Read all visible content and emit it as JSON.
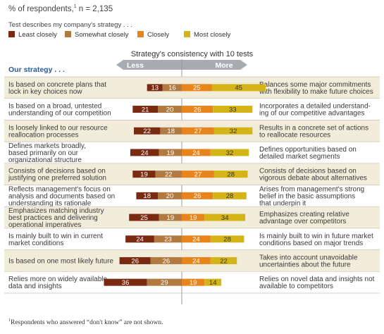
{
  "respondents_main": "% of respondents,",
  "respondents_sup": "1",
  "respondents_n": " n = 2,135",
  "subtitle": "Test describes my company's strategy . . .",
  "chart_data": {
    "type": "bar",
    "title": "Strategy's consistency with 10 tests",
    "left_heading": "Our strategy . . .",
    "axis_left": "Less",
    "axis_right": "More",
    "colors": [
      "#7b2a12",
      "#b07a40",
      "#e8841c",
      "#d5b418"
    ],
    "label_colors": [
      "#ffffff",
      "#ffffff",
      "#ffffff",
      "#333333"
    ],
    "series": [
      {
        "name": "Least closely",
        "values": [
          13,
          21,
          22,
          24,
          19,
          18,
          25,
          24,
          26,
          36
        ]
      },
      {
        "name": "Somewhat closely",
        "values": [
          16,
          20,
          18,
          19,
          22,
          20,
          19,
          23,
          26,
          29
        ]
      },
      {
        "name": "Closely",
        "values": [
          25,
          26,
          27,
          24,
          27,
          26,
          19,
          24,
          24,
          19
        ]
      },
      {
        "name": "Most closely",
        "values": [
          45,
          33,
          32,
          32,
          28,
          28,
          34,
          28,
          22,
          14
        ]
      }
    ],
    "rows": [
      {
        "left": [
          "Is based on concrete plans that",
          "lock in key choices now"
        ],
        "right": [
          "Balances some major commitments",
          "with flexibility to make future choices"
        ]
      },
      {
        "left": [
          "Is based on a broad, untested",
          "understanding of our competition"
        ],
        "right": [
          "Incorporates a detailed understand-",
          "ing of our competitive advantages"
        ]
      },
      {
        "left": [
          "Is loosely linked to our resource",
          "reallocation processes"
        ],
        "right": [
          "Results in a concrete set of actions",
          "to reallocate resources"
        ]
      },
      {
        "left": [
          "Defines markets broadly,",
          "based primarily on our",
          "organizational structure"
        ],
        "right": [
          "Defines opportunities based on",
          "detailed market segments"
        ]
      },
      {
        "left": [
          "Consists of decisions based on",
          "justifying one preferred solution"
        ],
        "right": [
          "Consists of decisions based on",
          "vigorous debate about alternatives"
        ]
      },
      {
        "left": [
          "Reflects management's focus on",
          "analysis and documents based on",
          "understanding its rationale"
        ],
        "right": [
          "Arises from management's strong",
          "belief in the basic assumptions",
          "that underpin it"
        ]
      },
      {
        "left": [
          "Emphasizes matching industry",
          "best practices and delivering",
          "operational imperatives"
        ],
        "right": [
          "Emphasizes creating relative",
          "advantage over competitors"
        ]
      },
      {
        "left": [
          "Is mainly built to win in current",
          "market conditions"
        ],
        "right": [
          "Is mainly built to win in future market",
          "conditions based on major trends"
        ]
      },
      {
        "left": [
          "Is based on one most likely future"
        ],
        "right": [
          "Takes into account unavoidable",
          "uncertainties about the future"
        ]
      },
      {
        "left": [
          "Relies more on widely available",
          "data and insights"
        ],
        "right": [
          "Relies on novel data and insights not",
          "available to competitors"
        ]
      }
    ]
  },
  "footnote_sup": "1",
  "footnote": "Respondents who answered “don't know” are not shown."
}
